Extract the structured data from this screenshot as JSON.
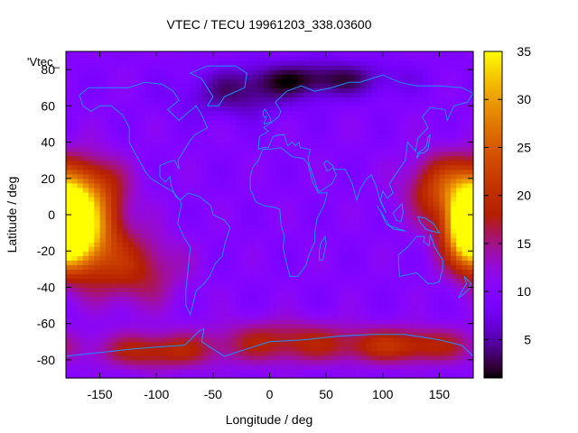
{
  "chart_data": {
    "type": "heatmap",
    "title": "VTEC / TECU 19961203_338.03600",
    "xlabel": "Longitude / deg",
    "ylabel": "Latitude / deg",
    "key_label": "'Vtec_",
    "xlim": [
      -180,
      180
    ],
    "ylim": [
      -90,
      90
    ],
    "x_ticks": [
      -150,
      -100,
      -50,
      0,
      50,
      100,
      150
    ],
    "y_ticks": [
      -80,
      -60,
      -40,
      -20,
      0,
      20,
      40,
      60,
      80
    ],
    "colorbar": {
      "range": [
        1,
        35
      ],
      "ticks": [
        5,
        10,
        15,
        20,
        25,
        30,
        35
      ],
      "colormap": "gnuplot-pm3d-7-5-15"
    },
    "grid": false,
    "grid_lon_step": 5,
    "grid_lat_step": 2.5,
    "features": [
      {
        "lon": -170,
        "lat": -10,
        "value": 34,
        "spread_lon": 32,
        "spread_lat": 22
      },
      {
        "lon": 178,
        "lat": -5,
        "value": 34,
        "spread_lon": 18,
        "spread_lat": 18
      },
      {
        "lon": -165,
        "lat": 15,
        "value": 22,
        "spread_lon": 35,
        "spread_lat": 18
      },
      {
        "lon": 150,
        "lat": 15,
        "value": 20,
        "spread_lon": 30,
        "spread_lat": 18
      },
      {
        "lon": -120,
        "lat": -30,
        "value": 18,
        "spread_lon": 40,
        "spread_lat": 20
      },
      {
        "lon": 10,
        "lat": -70,
        "value": 18,
        "spread_lon": 60,
        "spread_lat": 12
      },
      {
        "lon": 120,
        "lat": -72,
        "value": 20,
        "spread_lon": 60,
        "spread_lat": 10
      },
      {
        "lon": -100,
        "lat": -75,
        "value": 19,
        "spread_lon": 50,
        "spread_lat": 10
      },
      {
        "lon": 40,
        "lat": 75,
        "value": 2,
        "spread_lon": 70,
        "spread_lat": 10
      },
      {
        "lon": -30,
        "lat": 65,
        "value": 5,
        "spread_lon": 50,
        "spread_lat": 12
      }
    ],
    "background_value": 10
  }
}
